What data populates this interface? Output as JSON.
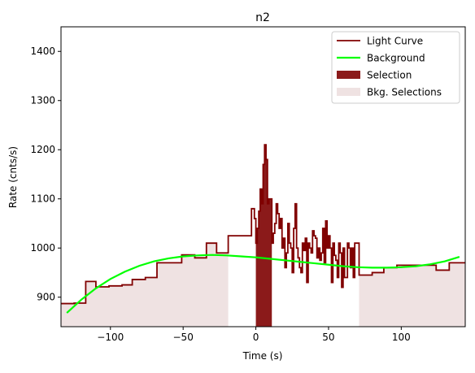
{
  "chart_data": {
    "type": "line",
    "title": "n2",
    "xlabel": "Time (s)",
    "ylabel": "Rate (cnts/s)",
    "xlim": [
      -134,
      144
    ],
    "ylim": [
      840,
      1450
    ],
    "xticks": [
      -100,
      -50,
      0,
      50,
      100
    ],
    "yticks": [
      900,
      1000,
      1100,
      1200,
      1300,
      1400
    ],
    "grid": false,
    "legend_position": "top-right",
    "legend": [
      {
        "label": "Light Curve",
        "kind": "line",
        "color": "#800000"
      },
      {
        "label": "Background",
        "kind": "line",
        "color": "#00ff00"
      },
      {
        "label": "Selection",
        "kind": "patch",
        "color": "#8b1a1a"
      },
      {
        "label": "Bkg. Selections",
        "kind": "patch",
        "color": "#efe2e2"
      }
    ],
    "bkg_selections": [
      [
        -134,
        -19
      ],
      [
        71,
        144
      ]
    ],
    "selection": [
      0,
      11
    ],
    "light_curve": {
      "edges": [
        -134,
        -125,
        -117,
        -110,
        -101,
        -92,
        -85,
        -76,
        -68,
        -60,
        -51,
        -42,
        -34,
        -27,
        -19,
        -11,
        -3,
        -1,
        0,
        1,
        2,
        3,
        4,
        5,
        6,
        7,
        8,
        9,
        10,
        11,
        12,
        13,
        14,
        15,
        16,
        17,
        18,
        19,
        20,
        21,
        22,
        23,
        24,
        25,
        26,
        27,
        28,
        29,
        30,
        31,
        32,
        33,
        34,
        35,
        36,
        37,
        38,
        39,
        40,
        41,
        42,
        43,
        44,
        45,
        46,
        47,
        48,
        49,
        50,
        51,
        52,
        53,
        54,
        55,
        56,
        57,
        58,
        59,
        60,
        61,
        62,
        63,
        64,
        65,
        66,
        67,
        68,
        71,
        80,
        88,
        97,
        106,
        115,
        124,
        133,
        144
      ],
      "values": [
        887,
        888,
        932,
        921,
        923,
        925,
        936,
        940,
        970,
        970,
        986,
        980,
        1010,
        990,
        1025,
        1025,
        1080,
        1060,
        1010,
        1040,
        1075,
        1120,
        1090,
        1170,
        1210,
        1180,
        1090,
        1100,
        1100,
        1010,
        1030,
        1050,
        1090,
        1070,
        1040,
        1060,
        1000,
        1020,
        960,
        990,
        1050,
        1010,
        1000,
        950,
        1040,
        1090,
        1000,
        980,
        960,
        950,
        1010,
        995,
        1020,
        930,
        1010,
        1000,
        990,
        1035,
        1025,
        1020,
        980,
        1000,
        975,
        990,
        1040,
        970,
        1055,
        1000,
        1025,
        1000,
        930,
        1010,
        985,
        975,
        940,
        1010,
        990,
        920,
        1000,
        940,
        940,
        1010,
        1000,
        960,
        1000,
        940,
        1010,
        945,
        950,
        960,
        965,
        965,
        965,
        955,
        970
      ]
    },
    "background": {
      "x": [
        -130,
        -120,
        -110,
        -100,
        -90,
        -80,
        -70,
        -60,
        -50,
        -40,
        -30,
        -20,
        -10,
        0,
        10,
        20,
        30,
        40,
        50,
        60,
        70,
        80,
        90,
        100,
        110,
        120,
        130,
        140
      ],
      "y": [
        868,
        895,
        918,
        937,
        952,
        964,
        973,
        979,
        983,
        985,
        986,
        985,
        983,
        981,
        978,
        975,
        972,
        969,
        966,
        963,
        961,
        960,
        960,
        961,
        963,
        967,
        973,
        982
      ]
    }
  }
}
